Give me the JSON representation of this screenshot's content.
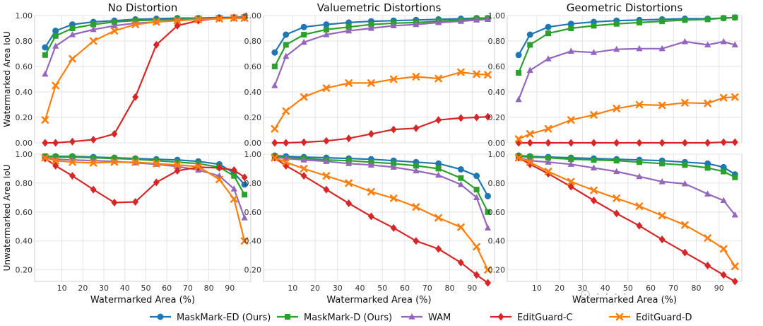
{
  "chart_data": {
    "type": "line",
    "x": [
      2,
      7,
      15,
      25,
      35,
      45,
      55,
      65,
      75,
      85,
      92,
      97
    ],
    "xlabel": "Watermarked Area (%)",
    "xticks": [
      10,
      20,
      30,
      40,
      50,
      60,
      70,
      80,
      90
    ],
    "xlim": [
      -3,
      100
    ],
    "yticks": [
      0.2,
      0.4,
      0.6,
      0.8,
      1.0
    ],
    "tick_format": "2dp",
    "grid": true,
    "columns": [
      "No Distortion",
      "Valuemetric Distortions",
      "Geometric Distortions"
    ],
    "rows": [
      {
        "ylabel": "Watermarked Area IoU",
        "ylim": [
          0.0,
          1.0
        ],
        "yticks": [
          0.0,
          0.2,
          0.4,
          0.6,
          0.8,
          1.0
        ]
      },
      {
        "ylabel": "Unwatermarked Area IoU",
        "ylim": [
          0.12,
          1.0
        ],
        "yticks": [
          0.2,
          0.4,
          0.6,
          0.8,
          1.0
        ]
      }
    ],
    "legend": {
      "placement": "bottom-center",
      "entries": [
        {
          "name": "MaskMark-ED (Ours)",
          "color": "#1f77b4",
          "marker": "circle"
        },
        {
          "name": "MaskMark-D (Ours)",
          "color": "#2ca02c",
          "marker": "square"
        },
        {
          "name": "WAM",
          "color": "#9467bd",
          "marker": "triangle"
        },
        {
          "name": "EditGuard-C",
          "color": "#d62728",
          "marker": "diamond"
        },
        {
          "name": "EditGuard-D",
          "color": "#ff7f0e",
          "marker": "x"
        }
      ]
    },
    "panels": [
      {
        "row": 0,
        "col": 0,
        "title": "No Distortion",
        "series": [
          {
            "name": "MaskMark-ED (Ours)",
            "values": [
              0.75,
              0.88,
              0.93,
              0.95,
              0.96,
              0.97,
              0.975,
              0.98,
              0.98,
              0.985,
              0.985,
              0.99
            ]
          },
          {
            "name": "MaskMark-D (Ours)",
            "values": [
              0.69,
              0.84,
              0.9,
              0.93,
              0.95,
              0.96,
              0.965,
              0.97,
              0.975,
              0.98,
              0.985,
              0.985
            ]
          },
          {
            "name": "WAM",
            "values": [
              0.54,
              0.76,
              0.85,
              0.89,
              0.92,
              0.94,
              0.95,
              0.96,
              0.97,
              0.98,
              0.98,
              0.98
            ]
          },
          {
            "name": "EditGuard-C",
            "values": [
              0.0,
              0.0,
              0.01,
              0.025,
              0.07,
              0.36,
              0.77,
              0.92,
              0.96,
              0.98,
              0.985,
              0.985
            ]
          },
          {
            "name": "EditGuard-D",
            "values": [
              0.18,
              0.45,
              0.66,
              0.8,
              0.88,
              0.93,
              0.95,
              0.96,
              0.97,
              0.975,
              0.98,
              0.98
            ]
          }
        ]
      },
      {
        "row": 0,
        "col": 1,
        "title": "Valuemetric Distortions",
        "series": [
          {
            "name": "MaskMark-ED (Ours)",
            "values": [
              0.71,
              0.85,
              0.91,
              0.93,
              0.945,
              0.955,
              0.96,
              0.965,
              0.97,
              0.975,
              0.98,
              0.98
            ]
          },
          {
            "name": "MaskMark-D (Ours)",
            "values": [
              0.6,
              0.77,
              0.85,
              0.89,
              0.91,
              0.93,
              0.94,
              0.945,
              0.955,
              0.965,
              0.975,
              0.98
            ]
          },
          {
            "name": "WAM",
            "values": [
              0.45,
              0.68,
              0.79,
              0.85,
              0.88,
              0.9,
              0.92,
              0.93,
              0.945,
              0.955,
              0.965,
              0.97
            ]
          },
          {
            "name": "EditGuard-C",
            "values": [
              0.0,
              0.0,
              0.005,
              0.015,
              0.035,
              0.07,
              0.105,
              0.115,
              0.18,
              0.195,
              0.2,
              0.205
            ]
          },
          {
            "name": "EditGuard-D",
            "values": [
              0.11,
              0.25,
              0.36,
              0.43,
              0.47,
              0.47,
              0.5,
              0.52,
              0.505,
              0.555,
              0.54,
              0.535
            ]
          }
        ]
      },
      {
        "row": 0,
        "col": 2,
        "title": "Geometric Distortions",
        "series": [
          {
            "name": "MaskMark-ED (Ours)",
            "values": [
              0.69,
              0.85,
              0.91,
              0.935,
              0.95,
              0.96,
              0.965,
              0.97,
              0.975,
              0.975,
              0.98,
              0.985
            ]
          },
          {
            "name": "MaskMark-D (Ours)",
            "values": [
              0.55,
              0.77,
              0.86,
              0.9,
              0.92,
              0.935,
              0.945,
              0.955,
              0.965,
              0.97,
              0.98,
              0.985
            ]
          },
          {
            "name": "WAM",
            "values": [
              0.34,
              0.57,
              0.66,
              0.72,
              0.71,
              0.735,
              0.74,
              0.74,
              0.795,
              0.77,
              0.795,
              0.77
            ]
          },
          {
            "name": "EditGuard-C",
            "values": [
              0.0,
              0.0,
              0.0,
              0.0,
              0.0,
              0.0,
              0.0,
              0.0,
              0.0,
              0.0,
              0.005,
              0.005
            ]
          },
          {
            "name": "EditGuard-D",
            "values": [
              0.03,
              0.07,
              0.11,
              0.18,
              0.22,
              0.27,
              0.3,
              0.295,
              0.315,
              0.31,
              0.355,
              0.36
            ]
          }
        ]
      },
      {
        "row": 1,
        "col": 0,
        "title": "",
        "series": [
          {
            "name": "MaskMark-ED (Ours)",
            "values": [
              0.985,
              0.985,
              0.985,
              0.98,
              0.975,
              0.97,
              0.965,
              0.96,
              0.95,
              0.93,
              0.87,
              0.79
            ]
          },
          {
            "name": "MaskMark-D (Ours)",
            "values": [
              0.985,
              0.98,
              0.98,
              0.975,
              0.97,
              0.965,
              0.955,
              0.945,
              0.935,
              0.91,
              0.85,
              0.72
            ]
          },
          {
            "name": "WAM",
            "values": [
              0.975,
              0.965,
              0.96,
              0.955,
              0.95,
              0.94,
              0.93,
              0.915,
              0.89,
              0.85,
              0.76,
              0.56
            ]
          },
          {
            "name": "EditGuard-C",
            "values": [
              0.97,
              0.92,
              0.85,
              0.755,
              0.665,
              0.67,
              0.805,
              0.885,
              0.91,
              0.905,
              0.89,
              0.84
            ]
          },
          {
            "name": "EditGuard-D",
            "values": [
              0.975,
              0.955,
              0.945,
              0.94,
              0.945,
              0.945,
              0.935,
              0.925,
              0.915,
              0.825,
              0.69,
              0.4
            ]
          }
        ]
      },
      {
        "row": 1,
        "col": 1,
        "title": "",
        "series": [
          {
            "name": "MaskMark-ED (Ours)",
            "values": [
              0.99,
              0.985,
              0.98,
              0.975,
              0.97,
              0.965,
              0.955,
              0.945,
              0.935,
              0.895,
              0.85,
              0.71
            ]
          },
          {
            "name": "MaskMark-D (Ours)",
            "values": [
              0.985,
              0.975,
              0.97,
              0.96,
              0.955,
              0.945,
              0.935,
              0.92,
              0.9,
              0.835,
              0.755,
              0.6
            ]
          },
          {
            "name": "WAM",
            "values": [
              0.98,
              0.97,
              0.96,
              0.95,
              0.935,
              0.925,
              0.91,
              0.885,
              0.855,
              0.79,
              0.7,
              0.49
            ]
          },
          {
            "name": "EditGuard-C",
            "values": [
              0.975,
              0.92,
              0.85,
              0.755,
              0.66,
              0.57,
              0.49,
              0.4,
              0.345,
              0.25,
              0.165,
              0.11
            ]
          },
          {
            "name": "EditGuard-D",
            "values": [
              0.975,
              0.945,
              0.9,
              0.85,
              0.8,
              0.74,
              0.695,
              0.635,
              0.56,
              0.495,
              0.36,
              0.2
            ]
          }
        ]
      },
      {
        "row": 1,
        "col": 2,
        "title": "",
        "series": [
          {
            "name": "MaskMark-ED (Ours)",
            "values": [
              0.99,
              0.985,
              0.98,
              0.975,
              0.97,
              0.965,
              0.96,
              0.955,
              0.945,
              0.935,
              0.91,
              0.86
            ]
          },
          {
            "name": "MaskMark-D (Ours)",
            "values": [
              0.985,
              0.98,
              0.975,
              0.965,
              0.96,
              0.955,
              0.945,
              0.935,
              0.925,
              0.905,
              0.88,
              0.84
            ]
          },
          {
            "name": "WAM",
            "values": [
              0.975,
              0.955,
              0.945,
              0.93,
              0.905,
              0.88,
              0.845,
              0.81,
              0.795,
              0.725,
              0.68,
              0.58
            ]
          },
          {
            "name": "EditGuard-C",
            "values": [
              0.975,
              0.93,
              0.865,
              0.775,
              0.68,
              0.59,
              0.505,
              0.41,
              0.32,
              0.23,
              0.165,
              0.12
            ]
          },
          {
            "name": "EditGuard-D",
            "values": [
              0.975,
              0.945,
              0.88,
              0.81,
              0.75,
              0.695,
              0.64,
              0.575,
              0.51,
              0.42,
              0.345,
              0.225
            ]
          }
        ]
      }
    ]
  }
}
